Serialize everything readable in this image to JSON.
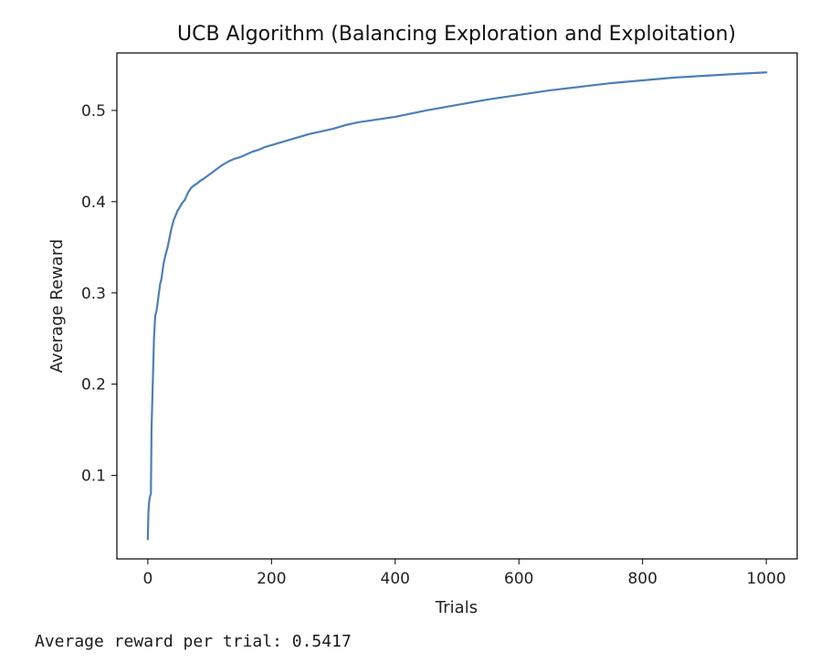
{
  "chart_data": {
    "type": "line",
    "title": "UCB Algorithm (Balancing Exploration and Exploitation)",
    "xlabel": "Trials",
    "ylabel": "Average Reward",
    "xlim": [
      -50,
      1050
    ],
    "ylim": [
      0.0085,
      0.563
    ],
    "xticks": [
      0,
      200,
      400,
      600,
      800,
      1000
    ],
    "xtick_labels": [
      "0",
      "200",
      "400",
      "600",
      "800",
      "1000"
    ],
    "yticks": [
      0.1,
      0.2,
      0.3,
      0.4,
      0.5
    ],
    "ytick_labels": [
      "0.1",
      "0.2",
      "0.3",
      "0.4",
      "0.5"
    ],
    "grid": false,
    "line_color": "#4c7fb6",
    "series": [
      {
        "x": [
          0,
          1,
          2,
          3,
          4,
          5,
          6,
          8,
          10,
          12,
          14,
          16,
          18,
          20,
          22,
          25,
          28,
          30,
          32,
          35,
          38,
          40,
          42,
          45,
          48,
          50,
          55,
          60,
          65,
          70,
          75,
          80,
          85,
          90,
          100,
          110,
          120,
          130,
          140,
          150,
          160,
          170,
          180,
          190,
          200,
          220,
          240,
          260,
          280,
          300,
          320,
          340,
          360,
          380,
          400,
          450,
          500,
          550,
          600,
          650,
          700,
          750,
          800,
          850,
          900,
          950,
          1000
        ],
        "y": [
          0.03,
          0.06,
          0.07,
          0.075,
          0.078,
          0.08,
          0.15,
          0.2,
          0.25,
          0.275,
          0.28,
          0.29,
          0.3,
          0.31,
          0.315,
          0.33,
          0.34,
          0.345,
          0.35,
          0.36,
          0.37,
          0.375,
          0.38,
          0.385,
          0.39,
          0.392,
          0.398,
          0.402,
          0.41,
          0.415,
          0.418,
          0.42,
          0.423,
          0.425,
          0.43,
          0.435,
          0.44,
          0.444,
          0.447,
          0.449,
          0.452,
          0.455,
          0.457,
          0.46,
          0.462,
          0.466,
          0.47,
          0.474,
          0.477,
          0.48,
          0.484,
          0.487,
          0.489,
          0.491,
          0.493,
          0.5,
          0.506,
          0.512,
          0.517,
          0.522,
          0.526,
          0.53,
          0.533,
          0.536,
          0.538,
          0.54,
          0.5417
        ]
      }
    ]
  },
  "output": {
    "text": "Average reward per trial: 0.5417"
  }
}
